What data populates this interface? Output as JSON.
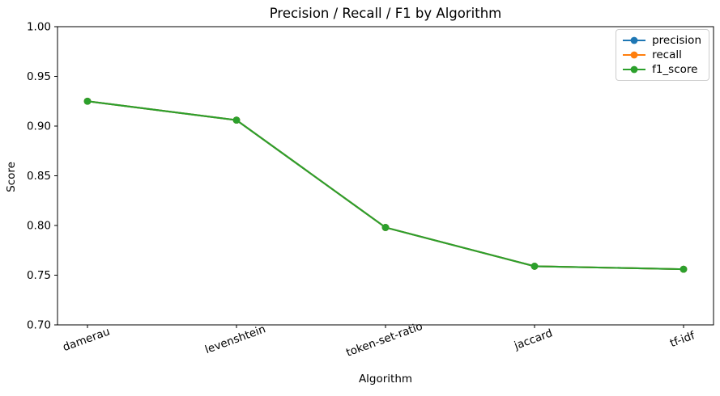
{
  "chart_data": {
    "type": "line",
    "title": "Precision / Recall / F1 by Algorithm",
    "xlabel": "Algorithm",
    "ylabel": "Score",
    "categories": [
      "damerau",
      "levenshtein",
      "token-set-ratio",
      "jaccard",
      "tf-idf"
    ],
    "series": [
      {
        "name": "precision",
        "color": "#1f77b4",
        "values": [
          0.925,
          0.906,
          0.798,
          0.759,
          0.756
        ]
      },
      {
        "name": "recall",
        "color": "#ff7f0e",
        "values": [
          0.925,
          0.906,
          0.798,
          0.759,
          0.756
        ]
      },
      {
        "name": "f1_score",
        "color": "#2ca02c",
        "values": [
          0.925,
          0.906,
          0.798,
          0.759,
          0.756
        ]
      }
    ],
    "ylim": [
      0.7,
      1.0
    ],
    "yticks": [
      0.7,
      0.75,
      0.8,
      0.85,
      0.9,
      0.95,
      1.0
    ],
    "ytick_labels": [
      "0.70",
      "0.75",
      "0.80",
      "0.85",
      "0.90",
      "0.95",
      "1.00"
    ],
    "x_tick_rotation": 20,
    "grid": false,
    "legend_position": "upper right",
    "axis_color": "#000000",
    "background_color": "#ffffff",
    "marker": "circle",
    "notes": "all three series overlap exactly; f1_score drawn on top"
  }
}
